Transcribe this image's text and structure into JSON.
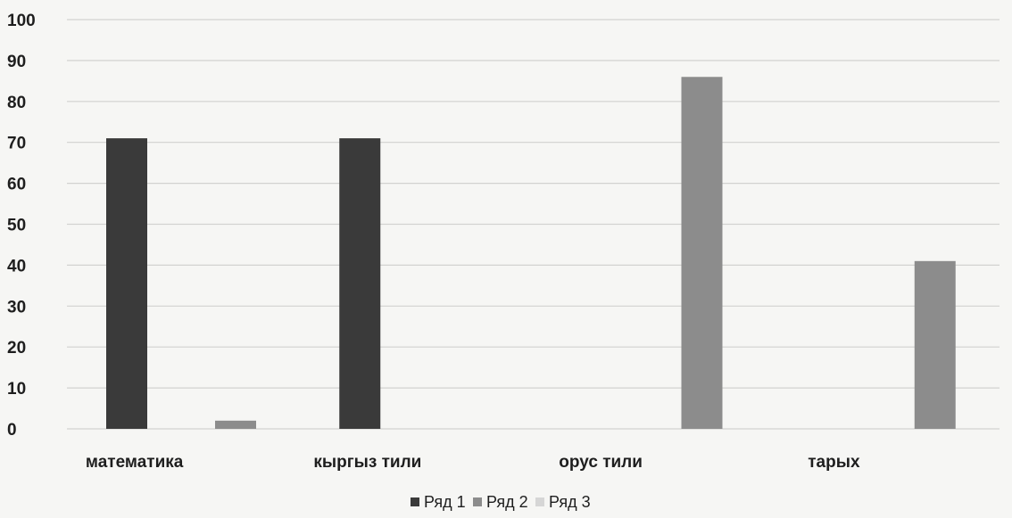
{
  "chart_data": {
    "type": "bar",
    "categories": [
      "математика",
      "кыргыз тили",
      "орус тили",
      "тарых"
    ],
    "series": [
      {
        "name": "Ряд 1",
        "values": [
          71,
          71,
          null,
          null
        ],
        "color": "#3a3a3a"
      },
      {
        "name": "Ряд 2",
        "values": [
          2,
          null,
          86,
          41
        ],
        "color": "#8c8c8c"
      },
      {
        "name": "Ряд 3",
        "values": [
          null,
          null,
          null,
          null
        ],
        "color": "#d6d6d6"
      }
    ],
    "ylim": [
      0,
      100
    ],
    "yticks": [
      0,
      10,
      20,
      30,
      40,
      50,
      60,
      70,
      80,
      90,
      100
    ],
    "grid": true,
    "legend_position": "bottom"
  }
}
